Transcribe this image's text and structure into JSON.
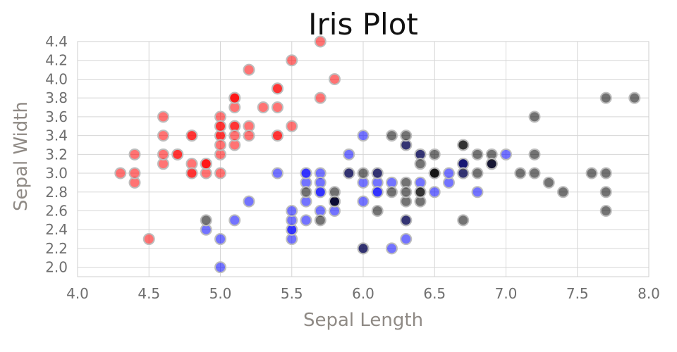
{
  "chart_data": {
    "type": "scatter",
    "title": "Iris Plot",
    "xlabel": "Sepal Length",
    "ylabel": "Sepal Width",
    "xlim": [
      4.0,
      8.0
    ],
    "ylim": [
      1.9,
      4.4
    ],
    "xticks": [
      "4.0",
      "4.5",
      "5.0",
      "5.5",
      "6.0",
      "6.5",
      "7.0",
      "7.5",
      "8.0"
    ],
    "yticks": [
      "2.0",
      "2.2",
      "2.4",
      "2.6",
      "2.8",
      "3.0",
      "3.2",
      "3.4",
      "3.6",
      "3.8",
      "4.0",
      "4.2",
      "4.4"
    ],
    "grid": true,
    "series": [
      {
        "color": "#ff0000",
        "points": [
          [
            5.1,
            3.5
          ],
          [
            4.9,
            3.0
          ],
          [
            4.7,
            3.2
          ],
          [
            4.6,
            3.1
          ],
          [
            5.0,
            3.6
          ],
          [
            5.4,
            3.9
          ],
          [
            4.6,
            3.4
          ],
          [
            5.0,
            3.4
          ],
          [
            4.4,
            2.9
          ],
          [
            4.9,
            3.1
          ],
          [
            5.4,
            3.7
          ],
          [
            4.8,
            3.4
          ],
          [
            4.8,
            3.0
          ],
          [
            4.3,
            3.0
          ],
          [
            5.8,
            4.0
          ],
          [
            5.7,
            4.4
          ],
          [
            5.4,
            3.9
          ],
          [
            5.1,
            3.5
          ],
          [
            5.7,
            3.8
          ],
          [
            5.1,
            3.8
          ],
          [
            5.4,
            3.4
          ],
          [
            5.1,
            3.7
          ],
          [
            4.6,
            3.6
          ],
          [
            5.1,
            3.3
          ],
          [
            4.8,
            3.4
          ],
          [
            5.0,
            3.0
          ],
          [
            5.0,
            3.4
          ],
          [
            5.2,
            3.5
          ],
          [
            5.2,
            3.4
          ],
          [
            4.7,
            3.2
          ],
          [
            4.8,
            3.1
          ],
          [
            5.4,
            3.4
          ],
          [
            5.2,
            4.1
          ],
          [
            5.5,
            4.2
          ],
          [
            4.9,
            3.1
          ],
          [
            5.0,
            3.2
          ],
          [
            5.5,
            3.5
          ],
          [
            4.9,
            3.1
          ],
          [
            4.4,
            3.0
          ],
          [
            5.1,
            3.4
          ],
          [
            5.0,
            3.5
          ],
          [
            4.5,
            2.3
          ],
          [
            4.4,
            3.2
          ],
          [
            5.0,
            3.5
          ],
          [
            5.1,
            3.8
          ],
          [
            4.8,
            3.0
          ],
          [
            5.1,
            3.8
          ],
          [
            4.6,
            3.2
          ],
          [
            5.3,
            3.7
          ],
          [
            5.0,
            3.3
          ]
        ]
      },
      {
        "color": "#0000ff",
        "points": [
          [
            7.0,
            3.2
          ],
          [
            6.4,
            3.2
          ],
          [
            6.9,
            3.1
          ],
          [
            5.5,
            2.3
          ],
          [
            6.5,
            2.8
          ],
          [
            5.7,
            2.8
          ],
          [
            6.3,
            3.3
          ],
          [
            4.9,
            2.4
          ],
          [
            6.6,
            2.9
          ],
          [
            5.2,
            2.7
          ],
          [
            5.0,
            2.0
          ],
          [
            5.9,
            3.0
          ],
          [
            6.0,
            2.2
          ],
          [
            6.1,
            2.9
          ],
          [
            5.6,
            2.9
          ],
          [
            6.7,
            3.1
          ],
          [
            5.6,
            3.0
          ],
          [
            5.8,
            2.7
          ],
          [
            6.2,
            2.2
          ],
          [
            5.6,
            2.5
          ],
          [
            5.9,
            3.2
          ],
          [
            6.1,
            2.8
          ],
          [
            6.3,
            2.5
          ],
          [
            6.1,
            2.8
          ],
          [
            6.4,
            2.9
          ],
          [
            6.6,
            3.0
          ],
          [
            6.8,
            2.8
          ],
          [
            6.7,
            3.0
          ],
          [
            6.0,
            2.9
          ],
          [
            5.7,
            2.6
          ],
          [
            5.5,
            2.4
          ],
          [
            5.5,
            2.4
          ],
          [
            5.8,
            2.7
          ],
          [
            6.0,
            2.7
          ],
          [
            5.4,
            3.0
          ],
          [
            6.0,
            3.4
          ],
          [
            6.7,
            3.1
          ],
          [
            6.3,
            2.3
          ],
          [
            5.6,
            3.0
          ],
          [
            5.5,
            2.5
          ],
          [
            5.5,
            2.6
          ],
          [
            6.1,
            3.0
          ],
          [
            5.8,
            2.6
          ],
          [
            5.0,
            2.3
          ],
          [
            5.6,
            2.7
          ],
          [
            5.7,
            3.0
          ],
          [
            5.7,
            2.9
          ],
          [
            6.2,
            2.9
          ],
          [
            5.1,
            2.5
          ],
          [
            5.7,
            2.8
          ]
        ]
      },
      {
        "color": "#000000",
        "points": [
          [
            6.3,
            3.3
          ],
          [
            5.8,
            2.7
          ],
          [
            7.1,
            3.0
          ],
          [
            6.3,
            2.9
          ],
          [
            6.5,
            3.0
          ],
          [
            7.6,
            3.0
          ],
          [
            4.9,
            2.5
          ],
          [
            7.3,
            2.9
          ],
          [
            6.7,
            2.5
          ],
          [
            7.2,
            3.6
          ],
          [
            6.5,
            3.2
          ],
          [
            6.4,
            2.7
          ],
          [
            6.8,
            3.0
          ],
          [
            5.7,
            2.5
          ],
          [
            5.8,
            2.8
          ],
          [
            6.4,
            3.2
          ],
          [
            6.5,
            3.0
          ],
          [
            7.7,
            3.8
          ],
          [
            7.7,
            2.6
          ],
          [
            6.0,
            2.2
          ],
          [
            6.9,
            3.2
          ],
          [
            5.6,
            2.8
          ],
          [
            7.7,
            2.8
          ],
          [
            6.3,
            2.7
          ],
          [
            6.7,
            3.3
          ],
          [
            7.2,
            3.2
          ],
          [
            6.2,
            2.8
          ],
          [
            6.1,
            3.0
          ],
          [
            6.4,
            2.8
          ],
          [
            7.2,
            3.0
          ],
          [
            7.4,
            2.8
          ],
          [
            7.9,
            3.8
          ],
          [
            6.4,
            2.8
          ],
          [
            6.3,
            2.8
          ],
          [
            6.1,
            2.6
          ],
          [
            7.7,
            3.0
          ],
          [
            6.3,
            3.4
          ],
          [
            6.4,
            3.1
          ],
          [
            6.0,
            3.0
          ],
          [
            6.9,
            3.1
          ],
          [
            6.7,
            3.1
          ],
          [
            6.9,
            3.1
          ],
          [
            5.8,
            2.7
          ],
          [
            6.8,
            3.2
          ],
          [
            6.7,
            3.3
          ],
          [
            6.7,
            3.0
          ],
          [
            6.3,
            2.5
          ],
          [
            6.5,
            3.0
          ],
          [
            6.2,
            3.4
          ],
          [
            5.9,
            3.0
          ]
        ]
      }
    ]
  }
}
